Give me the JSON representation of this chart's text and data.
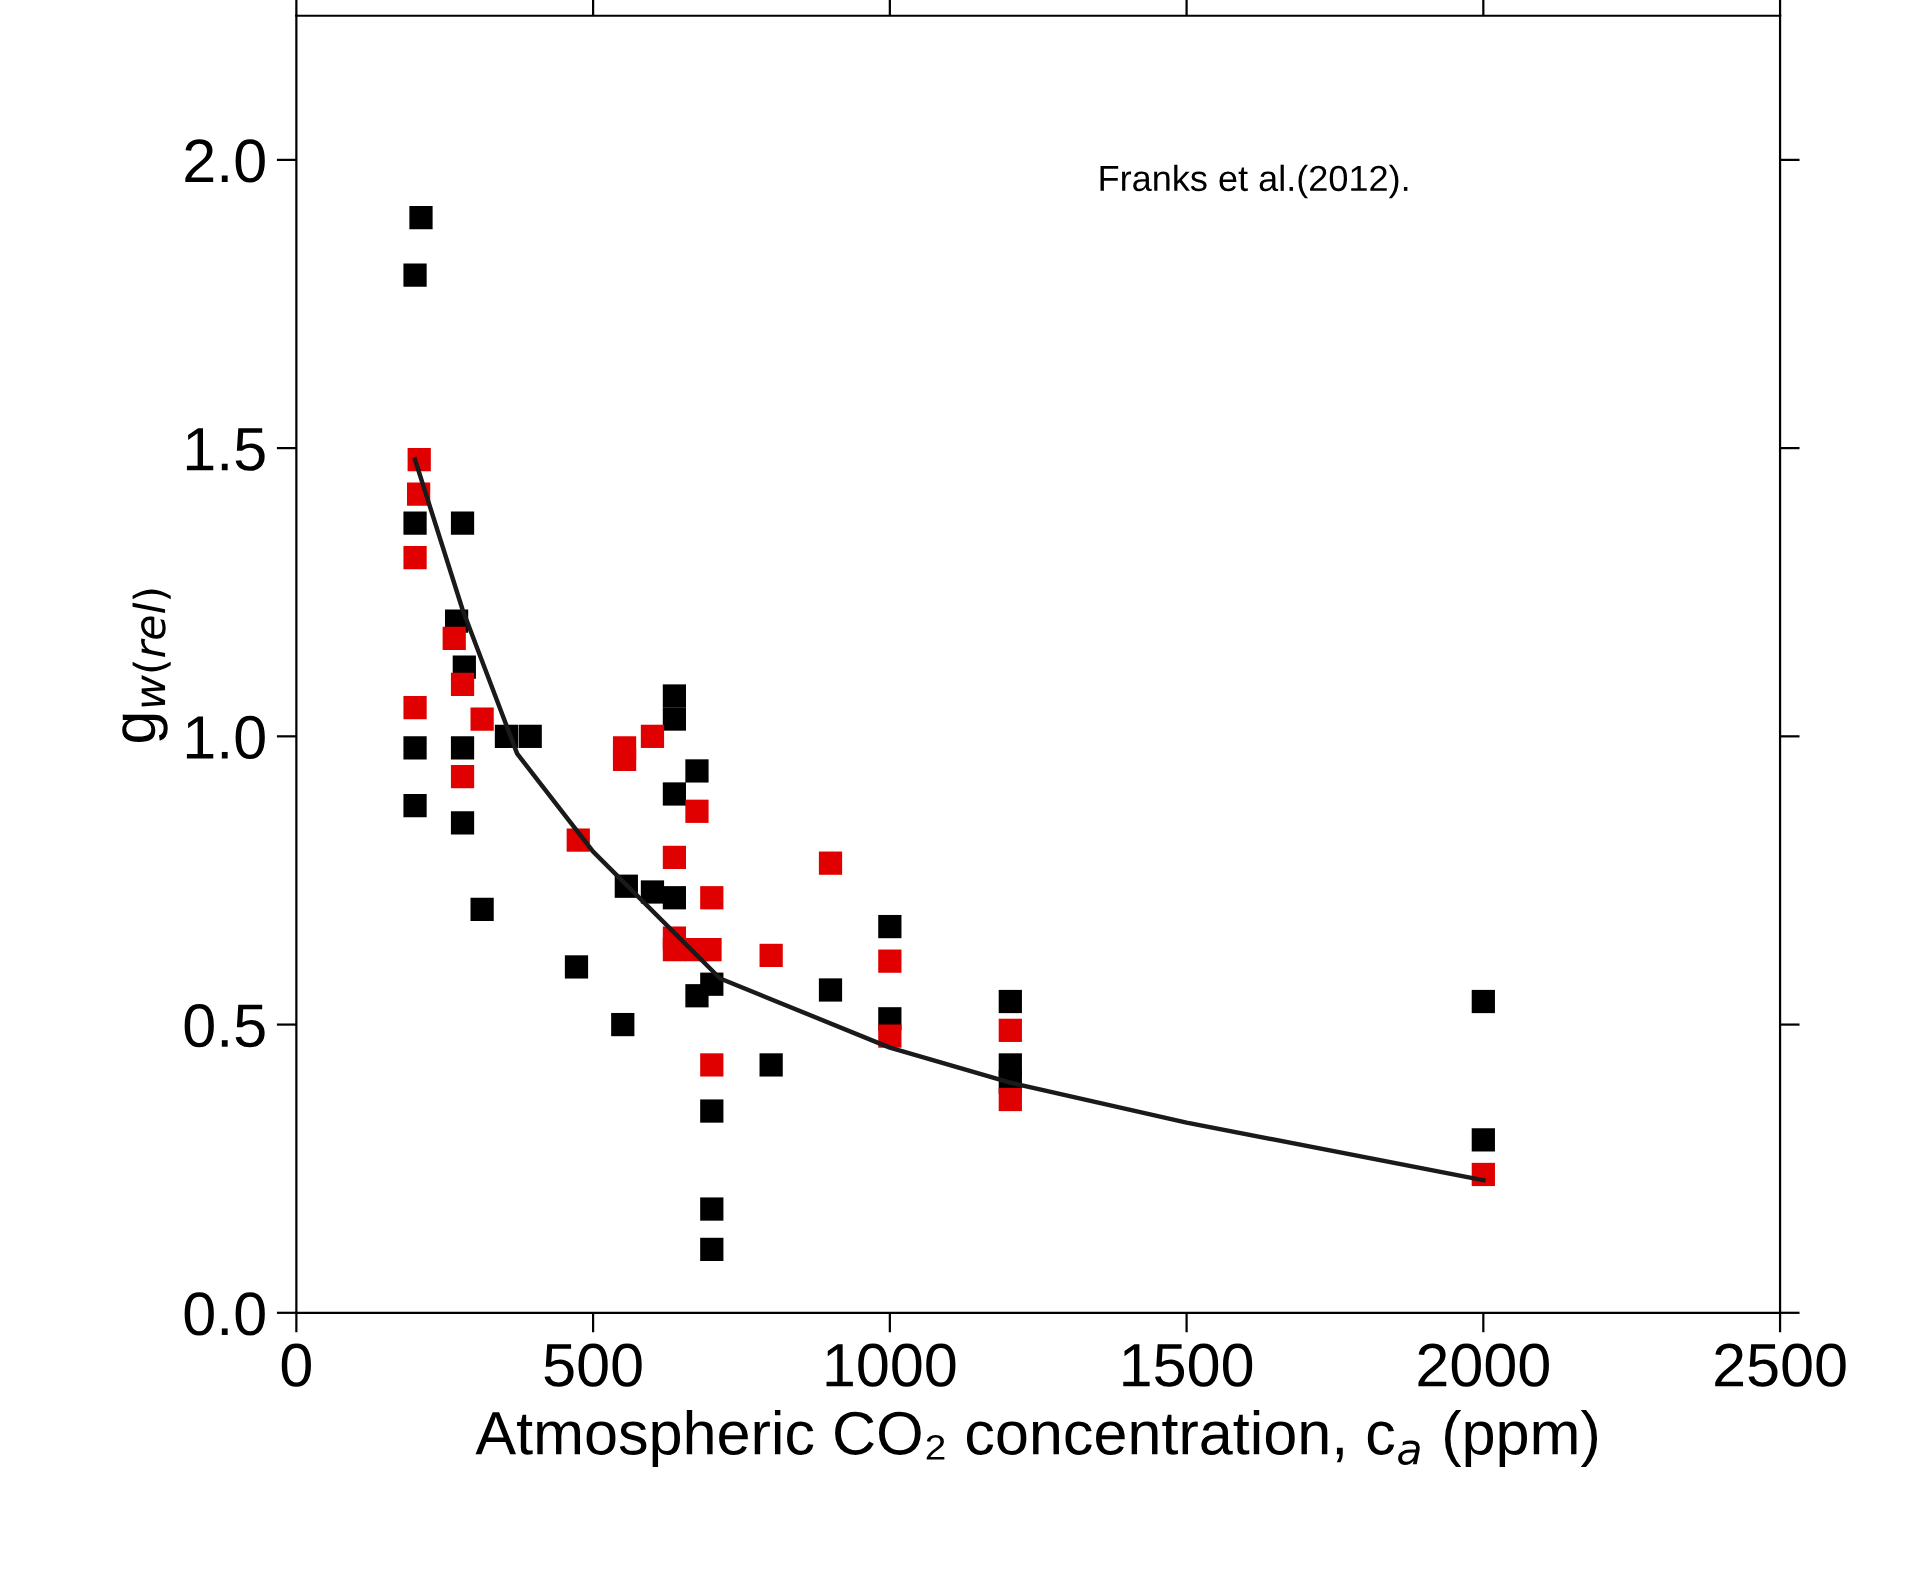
{
  "chart_data": {
    "type": "scatter",
    "xlabel": "Atmospheric CO₂ concentration, c$_{a}$ (ppm)",
    "ylabel": "g$_{w(rel)}$",
    "annotations": [
      "Franks et al.(2012)."
    ],
    "xlim": [
      0,
      2500
    ],
    "xticks": [
      0,
      500,
      1000,
      1500,
      2000,
      2500
    ],
    "ylim": [
      0,
      2.25
    ],
    "yticks": [
      {
        "value": 0,
        "label": "0.0"
      },
      0.5,
      {
        "value": 1,
        "label": "1.0"
      },
      1.5,
      {
        "value": 2,
        "label": "2.0"
      }
    ],
    "marker": "square",
    "grid": false,
    "legend": false,
    "series": [
      {
        "color": "#000000",
        "x": [
          210,
          200,
          200,
          280,
          200,
          270,
          283,
          354,
          394,
          280,
          200,
          280,
          313,
          637,
          637,
          675,
          637,
          556,
          600,
          637,
          1000,
          472,
          700,
          675,
          900,
          550,
          1000,
          800,
          700,
          700,
          700,
          1203,
          1203,
          1203,
          2000,
          2000
        ],
        "values": [
          1.9,
          1.8,
          1.37,
          1.37,
          0.98,
          1.2,
          1.12,
          1.0,
          1.0,
          0.98,
          0.88,
          0.85,
          0.7,
          1.07,
          1.03,
          0.94,
          0.9,
          0.74,
          0.73,
          0.72,
          0.67,
          0.6,
          0.57,
          0.55,
          0.56,
          0.5,
          0.51,
          0.43,
          0.35,
          0.18,
          0.11,
          0.54,
          0.43,
          0.4,
          0.54,
          0.3
        ]
      },
      {
        "color": "#e00000",
        "x": [
          207,
          206,
          200,
          266,
          280,
          200,
          313,
          280,
          553,
          553,
          600,
          675,
          475,
          637,
          900,
          700,
          637,
          637,
          697,
          675,
          800,
          1000,
          1000,
          700,
          1203,
          1203,
          2000
        ],
        "values": [
          1.48,
          1.42,
          1.31,
          1.17,
          1.09,
          1.05,
          1.03,
          0.93,
          0.98,
          0.96,
          1.0,
          0.87,
          0.82,
          0.79,
          0.78,
          0.72,
          0.65,
          0.63,
          0.63,
          0.63,
          0.62,
          0.61,
          0.48,
          0.43,
          0.49,
          0.37,
          0.24
        ]
      },
      {
        "type": "line",
        "color": "#1a1a1a",
        "marker": "none",
        "x": [
          200,
          280,
          372,
          500,
          714,
          1000,
          1200,
          1500,
          2000
        ],
        "values": [
          1.48,
          1.22,
          0.97,
          0.8,
          0.58,
          0.46,
          0.4,
          0.33,
          0.23
        ]
      }
    ]
  }
}
